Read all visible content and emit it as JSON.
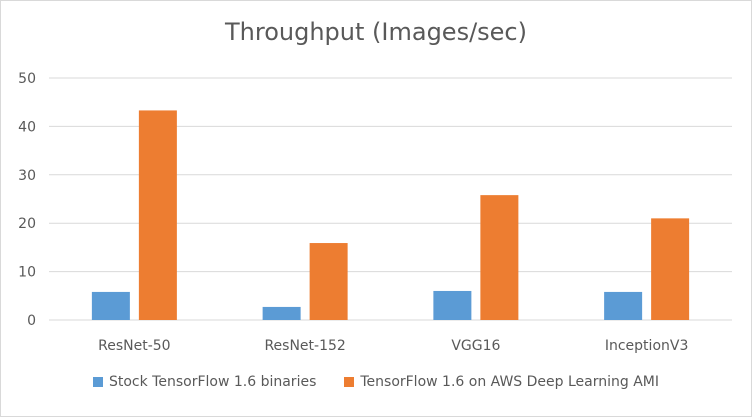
{
  "chart_data": {
    "type": "bar",
    "title": "Throughput (Images/sec)",
    "xlabel": "",
    "ylabel": "",
    "categories": [
      "ResNet-50",
      "ResNet-152",
      "VGG16",
      "InceptionV3"
    ],
    "series": [
      {
        "name": "Stock TensorFlow 1.6 binaries",
        "values": [
          5.8,
          2.7,
          6.0,
          5.8
        ],
        "color": "#5b9bd5"
      },
      {
        "name": "TensorFlow 1.6 on AWS Deep Learning AMI",
        "values": [
          43.3,
          15.9,
          25.8,
          21.0
        ],
        "color": "#ed7d31"
      }
    ],
    "ylim": [
      0,
      50
    ],
    "yticks": [
      0,
      10,
      20,
      30,
      40,
      50
    ],
    "ytick_labels": [
      "0",
      "10",
      "20",
      "30",
      "40",
      "50"
    ],
    "grid": true,
    "legend_position": "bottom"
  }
}
